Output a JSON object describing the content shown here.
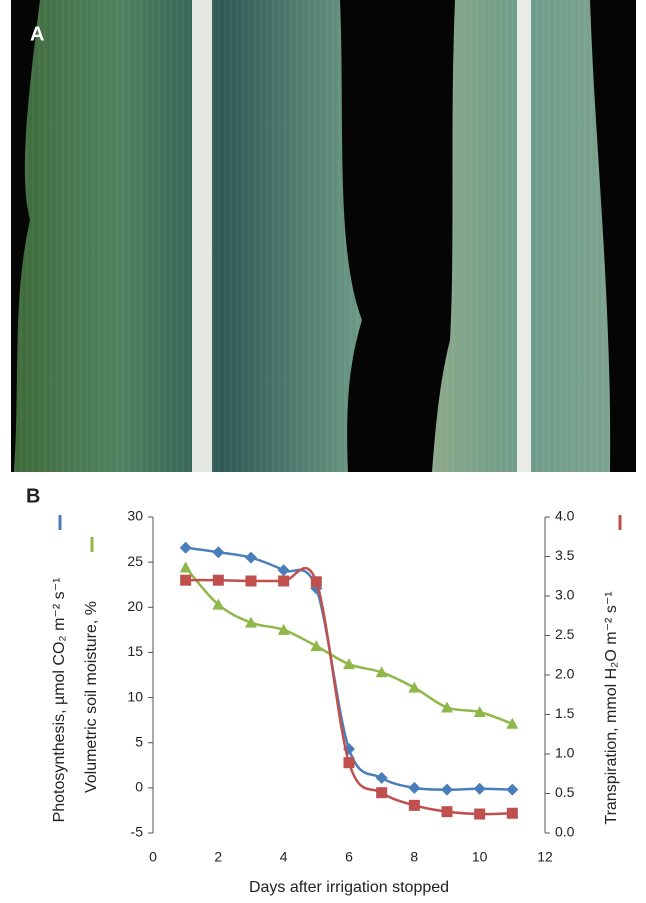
{
  "panels": {
    "a": "A",
    "b": "B"
  },
  "chart_data": {
    "type": "line",
    "xlabel": "Days after irrigation stopped",
    "x": [
      1,
      2,
      3,
      4,
      5,
      6,
      7,
      8,
      9,
      10,
      11
    ],
    "xlim": [
      0,
      12
    ],
    "xticks": [
      0,
      2,
      4,
      6,
      8,
      10,
      12
    ],
    "ylim": [
      -5,
      30
    ],
    "yticks": [
      -5,
      0,
      5,
      10,
      15,
      20,
      25,
      30
    ],
    "y2lim": [
      0,
      4
    ],
    "y2ticks": [
      {
        "value": 0,
        "label": "0.0"
      },
      {
        "value": 0.5,
        "label": "0.5"
      },
      {
        "value": 1,
        "label": "1.0"
      },
      {
        "value": 1.5,
        "label": "1.5"
      },
      {
        "value": 2,
        "label": "2.0"
      },
      {
        "value": 2.5,
        "label": "2.5"
      },
      {
        "value": 3,
        "label": "3.0"
      },
      {
        "value": 3.5,
        "label": "3.5"
      },
      {
        "value": 4,
        "label": "4.0"
      }
    ],
    "grid": false,
    "series": [
      {
        "name": "Photosynthesis, µmol CO₂ m⁻² s⁻¹",
        "color": "#4a7ebb",
        "marker": "diamond",
        "values": [
          26.6,
          26.1,
          25.5,
          24.1,
          22.1,
          4.3,
          1.1,
          0.0,
          -0.2,
          -0.1,
          -0.2
        ]
      },
      {
        "name": "Volumetric soil moisture, %",
        "color": "#8fb84a",
        "marker": "triangle",
        "values": [
          24.4,
          20.3,
          18.3,
          17.5,
          15.7,
          13.7,
          12.8,
          11.1,
          8.9,
          8.4,
          7.1
        ]
      },
      {
        "name": "Transpiration, mmol H₂O m⁻² s⁻¹",
        "color": "#c0504d",
        "marker": "square",
        "axis": "y2",
        "values": [
          3.2,
          3.2,
          3.19,
          3.19,
          3.18,
          0.89,
          0.51,
          0.35,
          0.27,
          0.24,
          0.25
        ]
      }
    ]
  }
}
